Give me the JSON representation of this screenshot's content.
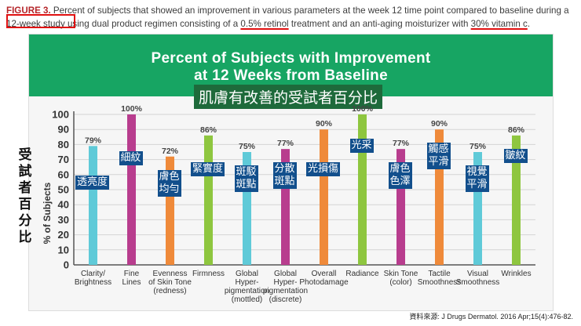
{
  "caption": {
    "figure_label": "FIGURE 3.",
    "part1": " Percent of subjects that showed an improvement in various parameters at the week 12 time point compared to baseline during a ",
    "study": "12-week study",
    "part2": " using dual product regimen consisting of a ",
    "retinol": "0.5% retinol",
    "part3": " treatment and an anti-aging moisturizer with ",
    "vitc": "30% vitamin c",
    "part4": "."
  },
  "chart_data": {
    "type": "bar",
    "title": "Percent of Subjects with Improvement at 12 Weeks from Baseline",
    "title_line1": "Percent of Subjects with Improvement",
    "title_line2": "at 12 Weeks from Baseline",
    "ylabel": "% of Subjects",
    "ylim": [
      0,
      100
    ],
    "yticks": [
      0,
      10,
      20,
      30,
      40,
      50,
      60,
      70,
      80,
      90,
      100
    ],
    "categories": [
      [
        "Clarity/",
        "Brightness"
      ],
      [
        "Fine",
        "Lines"
      ],
      [
        "Evenness",
        "of Skin Tone",
        "(redness)"
      ],
      [
        "Firmness"
      ],
      [
        "Global",
        "Hyper-",
        "pigmentation",
        "(mottled)"
      ],
      [
        "Global",
        "Hyper-",
        "pigmentation",
        "(discrete)"
      ],
      [
        "Overall",
        "Photodamage"
      ],
      [
        "Radiance"
      ],
      [
        "Skin Tone",
        "(color)"
      ],
      [
        "Tactile",
        "Smoothness"
      ],
      [
        "Visual",
        "Smoothness"
      ],
      [
        "Wrinkles"
      ]
    ],
    "values": [
      79,
      100,
      72,
      86,
      75,
      77,
      90,
      100,
      77,
      90,
      75,
      86
    ],
    "value_labels": [
      "79%",
      "100%",
      "72%",
      "86%",
      "75%",
      "77%",
      "90%",
      "100%",
      "77%",
      "90%",
      "75%",
      "86%"
    ],
    "colors": [
      "#5fcad8",
      "#b83d8e",
      "#ef8a3a",
      "#8ec63f",
      "#5fcad8",
      "#b83d8e",
      "#ef8a3a",
      "#8ec63f",
      "#b83d8e",
      "#ef8a3a",
      "#5fcad8",
      "#8ec63f"
    ],
    "grid": true
  },
  "zh": {
    "title": "肌膚有改善的受試者百分比",
    "axis_label": "受試者百分比",
    "bar_labels": [
      "透亮度",
      "細紋",
      "膚色\n均勻",
      "緊實度",
      "斑駁\n斑點",
      "分散\n斑點",
      "光損傷",
      "光采",
      "膚色\n色澤",
      "觸感\n平滑",
      "視覺\n平滑",
      "皺紋"
    ]
  },
  "source": "資料來源: J Drugs Dermatol. 2016 Apr;15(4):476-82."
}
